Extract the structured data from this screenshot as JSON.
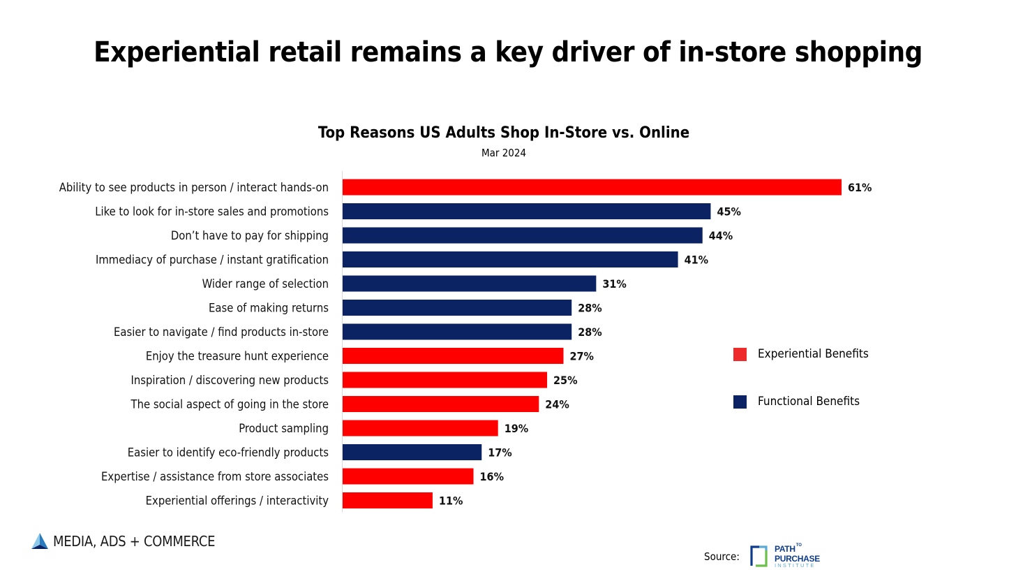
{
  "header": {
    "title": "Experiential retail remains a key driver of in-store shopping"
  },
  "chart_data": {
    "type": "bar",
    "orientation": "horizontal",
    "title": "Top Reasons US Adults Shop In-Store vs. Online",
    "subtitle": "Mar 2024",
    "xlabel": "",
    "ylabel": "",
    "xlim": [
      0,
      65
    ],
    "grid": false,
    "legend_position": "right",
    "value_suffix": "%",
    "categories": [
      "Ability to see products in person / interact hands-on",
      "Like to look for in-store sales and promotions",
      "Don’t have to pay for shipping",
      "Immediacy of purchase / instant gratification",
      "Wider range of selection",
      "Ease of making returns",
      "Easier to navigate / find products in-store",
      "Enjoy the treasure hunt experience",
      "Inspiration / discovering new products",
      "The social aspect of going in the store",
      "Product sampling",
      "Easier to identify eco-friendly products",
      "Expertise / assistance from store associates",
      "Experiential offerings / interactivity"
    ],
    "values": [
      61,
      45,
      44,
      41,
      31,
      28,
      28,
      27,
      25,
      24,
      19,
      17,
      16,
      11
    ],
    "value_labels": [
      "61%",
      "45%",
      "44%",
      "41%",
      "31%",
      "28%",
      "28%",
      "27%",
      "25%",
      "24%",
      "19%",
      "17%",
      "16%",
      "11%"
    ],
    "groups": [
      "experiential",
      "functional",
      "functional",
      "functional",
      "functional",
      "functional",
      "functional",
      "experiential",
      "experiential",
      "experiential",
      "experiential",
      "functional",
      "experiential",
      "experiential"
    ],
    "legend": [
      {
        "key": "experiential",
        "label": "Experiential Benefits",
        "color": "#ee2a2a"
      },
      {
        "key": "functional",
        "label": "Functional Benefits",
        "color": "#0c2363"
      }
    ],
    "colors": {
      "experiential": "#ff0000",
      "functional": "#0c2363"
    }
  },
  "footer": {
    "brand": {
      "label": "MEDIA, ADS + COMMERCE",
      "icon": "triangle-logo-icon"
    },
    "source_label": "Source:",
    "source_logo": {
      "icon": "path-to-purchase-logo-icon",
      "line1": "PATH",
      "line1_small": "TO",
      "line2": "PURCHASE",
      "line3": "INSTITUTE"
    }
  }
}
